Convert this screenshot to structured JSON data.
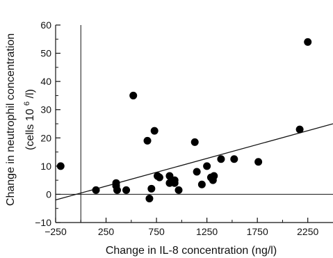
{
  "chart_data": {
    "type": "scatter",
    "xlabel": "Change in IL-8 concentration (ng/l)",
    "ylabel_line1": "Change in neutrophil concentration",
    "ylabel_line2_pre": "(cells   10",
    "ylabel_line2_sup": "6",
    "ylabel_line2_post": "/l)",
    "xlim": [
      -250,
      2500
    ],
    "ylim": [
      -10,
      60
    ],
    "x_ticks": [
      -250,
      250,
      750,
      1250,
      1750,
      2250
    ],
    "x_tick_labels": [
      "−250",
      "250",
      "750",
      "1250",
      "1750",
      "2250"
    ],
    "y_ticks": [
      -10,
      0,
      10,
      20,
      30,
      40,
      50,
      60
    ],
    "y_tick_labels": [
      "−10",
      "0",
      "10",
      "20",
      "30",
      "40",
      "50",
      "60"
    ],
    "grid": false,
    "points": [
      {
        "x": -200,
        "y": 10
      },
      {
        "x": 150,
        "y": 1.5
      },
      {
        "x": 350,
        "y": 4
      },
      {
        "x": 350,
        "y": 3
      },
      {
        "x": 360,
        "y": 1.5
      },
      {
        "x": 450,
        "y": 1.5
      },
      {
        "x": 520,
        "y": 35
      },
      {
        "x": 660,
        "y": 19
      },
      {
        "x": 680,
        "y": -1.5
      },
      {
        "x": 700,
        "y": 2
      },
      {
        "x": 730,
        "y": 22.5
      },
      {
        "x": 760,
        "y": 6.5
      },
      {
        "x": 780,
        "y": 6
      },
      {
        "x": 880,
        "y": 6.5
      },
      {
        "x": 880,
        "y": 4
      },
      {
        "x": 930,
        "y": 5
      },
      {
        "x": 930,
        "y": 4
      },
      {
        "x": 970,
        "y": 1.5
      },
      {
        "x": 1130,
        "y": 18.5
      },
      {
        "x": 1150,
        "y": 8
      },
      {
        "x": 1200,
        "y": 3.5
      },
      {
        "x": 1250,
        "y": 10
      },
      {
        "x": 1290,
        "y": 6
      },
      {
        "x": 1310,
        "y": 5
      },
      {
        "x": 1320,
        "y": 6.5
      },
      {
        "x": 1390,
        "y": 12.5
      },
      {
        "x": 1520,
        "y": 12.5
      },
      {
        "x": 1760,
        "y": 11.5
      },
      {
        "x": 2170,
        "y": 23
      },
      {
        "x": 2250,
        "y": 54
      }
    ],
    "regression_line": {
      "x1": -250,
      "y1": -2,
      "x2": 2500,
      "y2": 25
    },
    "reference_lines": {
      "vertical_x": 0,
      "horizontal_y": 0
    }
  }
}
